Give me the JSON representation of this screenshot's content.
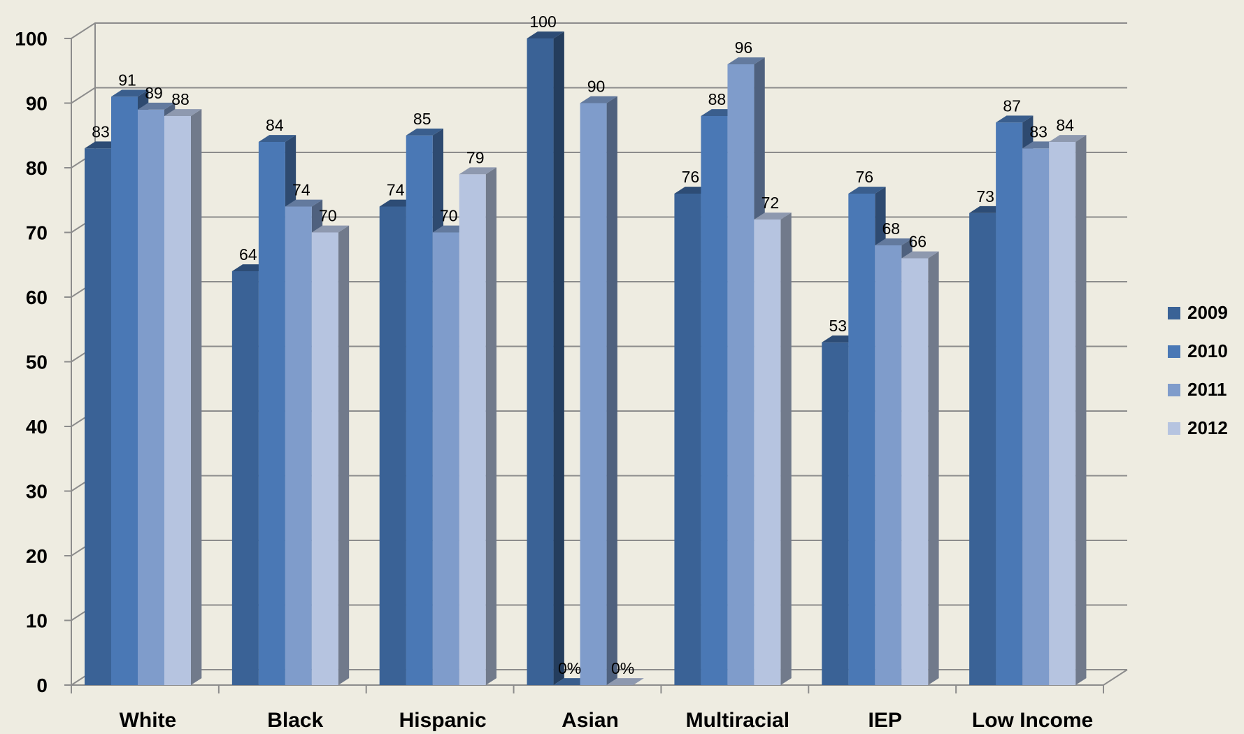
{
  "chart_data": {
    "type": "bar",
    "categories": [
      "White",
      "Black",
      "Hispanic",
      "Asian",
      "Multiracial",
      "IEP",
      "Low Income"
    ],
    "series": [
      {
        "name": "2009",
        "color": "#3a6296",
        "values": [
          83,
          64,
          74,
          100,
          76,
          53,
          73
        ],
        "labels": [
          "83",
          "64",
          "74",
          "100",
          "76",
          "53",
          "73"
        ]
      },
      {
        "name": "2010",
        "color": "#4a78b5",
        "values": [
          91,
          84,
          85,
          0,
          88,
          76,
          87
        ],
        "labels": [
          "91",
          "84",
          "85",
          "0%",
          "88",
          "76",
          "87"
        ]
      },
      {
        "name": "2011",
        "color": "#7f9ccb",
        "values": [
          89,
          74,
          70,
          90,
          96,
          68,
          83
        ],
        "labels": [
          "89",
          "74",
          "70",
          "90",
          "96",
          "68",
          "83"
        ]
      },
      {
        "name": "2012",
        "color": "#b6c4e0",
        "values": [
          88,
          70,
          79,
          0,
          72,
          66,
          84
        ],
        "labels": [
          "88",
          "70",
          "79",
          "0%",
          "72",
          "66",
          "84"
        ]
      }
    ],
    "y_ticks": [
      "0",
      "10",
      "20",
      "30",
      "40",
      "50",
      "60",
      "70",
      "80",
      "90",
      "100"
    ],
    "ylim": [
      0,
      100
    ],
    "grid": true,
    "legend_position": "right",
    "background": "#eeece1"
  }
}
